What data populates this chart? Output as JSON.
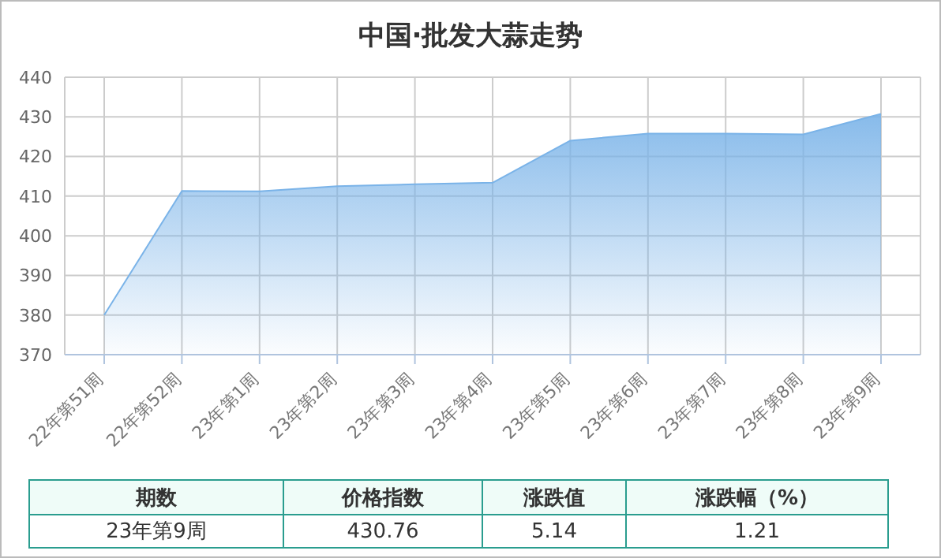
{
  "chart_data": {
    "type": "area",
    "title": "中国·批发大蒜走势",
    "categories": [
      "22年第51周",
      "22年第52周",
      "23年第1周",
      "23年第2周",
      "23年第3周",
      "23年第4周",
      "23年第5周",
      "23年第6周",
      "23年第7周",
      "23年第8周",
      "23年第9周"
    ],
    "series": [
      {
        "color": "#7ab3e8",
        "values": [
          380,
          411.3,
          411.2,
          412.5,
          413.0,
          413.4,
          424.0,
          425.8,
          425.8,
          425.6,
          430.76
        ]
      }
    ],
    "ylim": [
      370,
      440
    ],
    "yticks": [
      370,
      380,
      390,
      400,
      410,
      420,
      430,
      440
    ],
    "grid": true,
    "legend": false,
    "annotations": [
      "期数",
      "价格指数",
      "涨跌值",
      "涨跌幅（%）",
      "23年第9周",
      "430.76",
      "5.14",
      "1.21"
    ]
  }
}
